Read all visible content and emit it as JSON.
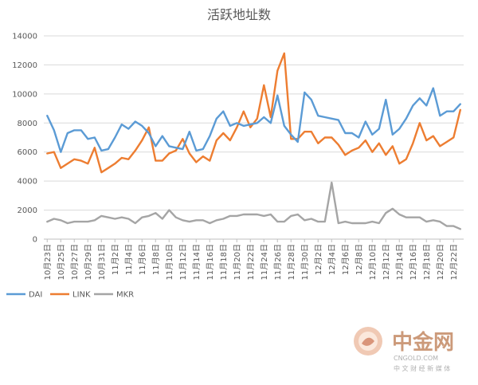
{
  "chart_data": {
    "type": "line",
    "title": "活跃地址数",
    "xlabel": "",
    "ylabel": "",
    "ylim": [
      0,
      14000
    ],
    "yticks": [
      0,
      2000,
      4000,
      6000,
      8000,
      10000,
      12000,
      14000
    ],
    "grid": true,
    "legend_position": "bottom-left",
    "x": [
      "10月23日",
      "10月24日",
      "10月25日",
      "10月26日",
      "10月27日",
      "10月28日",
      "10月29日",
      "10月30日",
      "10月31日",
      "11月1日",
      "11月2日",
      "11月3日",
      "11月4日",
      "11月5日",
      "11月6日",
      "11月7日",
      "11月8日",
      "11月9日",
      "11月10日",
      "11月11日",
      "11月12日",
      "11月13日",
      "11月14日",
      "11月15日",
      "11月16日",
      "11月17日",
      "11月18日",
      "11月19日",
      "11月20日",
      "11月21日",
      "11月22日",
      "11月23日",
      "11月24日",
      "11月25日",
      "11月26日",
      "11月27日",
      "11月28日",
      "11月29日",
      "11月30日",
      "12月1日",
      "12月2日",
      "12月3日",
      "12月4日",
      "12月5日",
      "12月6日",
      "12月7日",
      "12月8日",
      "12月9日",
      "12月10日",
      "12月11日",
      "12月12日",
      "12月13日",
      "12月14日",
      "12月15日",
      "12月16日",
      "12月17日",
      "12月18日",
      "12月19日",
      "12月20日",
      "12月21日",
      "12月22日",
      "12月23日"
    ],
    "tick_labels": [
      "10月23日",
      "10月25日",
      "10月27日",
      "10月29日",
      "10月31日",
      "11月2日",
      "11月4日",
      "11月6日",
      "11月8日",
      "11月10日",
      "11月12日",
      "11月14日",
      "11月16日",
      "11月18日",
      "11月20日",
      "11月22日",
      "11月24日",
      "11月26日",
      "11月28日",
      "11月30日",
      "12月2日",
      "12月4日",
      "12月6日",
      "12月8日",
      "12月10日",
      "12月12日",
      "12月14日",
      "12月16日",
      "12月18日",
      "12月20日",
      "12月22日"
    ],
    "series": [
      {
        "name": "DAI",
        "color": "#5b9bd5",
        "values": [
          8500,
          7500,
          6000,
          7300,
          7500,
          7500,
          6900,
          7000,
          6100,
          6200,
          7000,
          7900,
          7600,
          8100,
          7800,
          7300,
          6400,
          7100,
          6400,
          6300,
          6200,
          7400,
          6100,
          6200,
          7100,
          8300,
          8800,
          7800,
          8000,
          7800,
          7900,
          8000,
          8400,
          8000,
          9900,
          7800,
          7200,
          6700,
          10100,
          9600,
          8500,
          8400,
          8300,
          8200,
          7300,
          7300,
          7000,
          8100,
          7200,
          7600,
          9600,
          7200,
          7600,
          8300,
          9200,
          9700,
          9200,
          10400,
          8500,
          8800,
          8800,
          9300
        ]
      },
      {
        "name": "LINK",
        "color": "#ed7d31",
        "values": [
          5900,
          6000,
          4900,
          5200,
          5500,
          5400,
          5200,
          6300,
          4600,
          4900,
          5200,
          5600,
          5500,
          6100,
          6800,
          7700,
          5400,
          5400,
          5900,
          6100,
          6900,
          5900,
          5300,
          5700,
          5400,
          6800,
          7300,
          6800,
          7700,
          8800,
          7700,
          8300,
          10600,
          8400,
          11600,
          12800,
          6900,
          6900,
          7400,
          7400,
          6600,
          7000,
          7000,
          6500,
          5800,
          6100,
          6300,
          6800,
          6000,
          6600,
          5800,
          6400,
          5200,
          5500,
          6600,
          8000,
          6800,
          7100,
          6400,
          6700,
          7000,
          8900
        ]
      },
      {
        "name": "MKR",
        "color": "#a5a5a5",
        "values": [
          1200,
          1400,
          1300,
          1100,
          1200,
          1200,
          1200,
          1300,
          1600,
          1500,
          1400,
          1500,
          1400,
          1100,
          1500,
          1600,
          1800,
          1400,
          2000,
          1500,
          1300,
          1200,
          1300,
          1300,
          1100,
          1300,
          1400,
          1600,
          1600,
          1700,
          1700,
          1700,
          1600,
          1700,
          1200,
          1200,
          1600,
          1700,
          1300,
          1400,
          1200,
          1200,
          3900,
          1100,
          1200,
          1100,
          1100,
          1100,
          1200,
          1100,
          1800,
          2100,
          1700,
          1500,
          1500,
          1500,
          1200,
          1300,
          1200,
          900,
          900,
          700
        ]
      }
    ]
  },
  "watermark": {
    "name": "中金网",
    "domain": "CNGOLD.COM",
    "tagline": "中 文 财 经 新 媒 体"
  }
}
